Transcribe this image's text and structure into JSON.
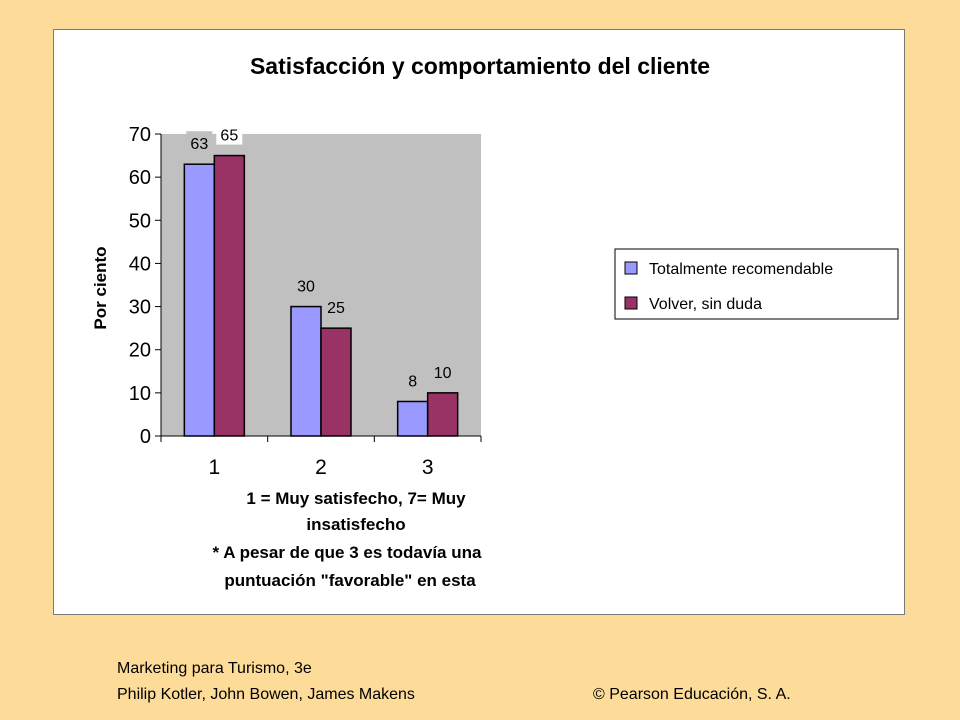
{
  "chart_data": {
    "type": "bar",
    "title": "Satisfacción y comportamiento del cliente",
    "ylabel": "Por ciento",
    "xlabel_lines": [
      "1 = Muy satisfecho, 7= Muy",
      "insatisfecho",
      "* A pesar de que 3 es todavía una",
      "puntuación \"favorable\" en esta"
    ],
    "categories": [
      "1",
      "2",
      "3"
    ],
    "ylim": [
      0,
      70
    ],
    "yticks": [
      "0",
      "10",
      "20",
      "30",
      "40",
      "50",
      "60",
      "70"
    ],
    "series": [
      {
        "name": "Totalmente recomendable",
        "values": [
          63,
          30,
          8
        ],
        "labels": [
          "63",
          "30",
          "8"
        ],
        "color": "#9999FF"
      },
      {
        "name": "Volver, sin duda",
        "values": [
          65,
          25,
          10
        ],
        "labels": [
          "65",
          "25",
          "10"
        ],
        "color": "#993366"
      }
    ],
    "plot_background": "#C0C0C0",
    "legend_position": "right"
  },
  "footer": {
    "book": "Marketing para Turismo, 3e",
    "authors": "Philip Kotler, John Bowen, James Makens",
    "copyright": "© Pearson Educación, S. A."
  }
}
